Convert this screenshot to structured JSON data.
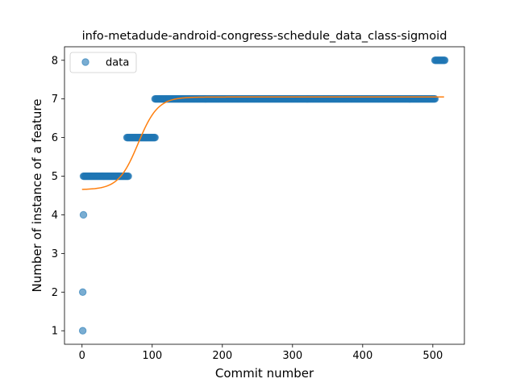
{
  "chart_data": {
    "type": "scatter",
    "title": "info-metadude-android-congress-schedule_data_class-sigmoid",
    "xlabel": "Commit number",
    "ylabel": "Number of instance of a feature",
    "xlim": [
      -25,
      545
    ],
    "ylim": [
      0.65,
      8.35
    ],
    "xticks": [
      0,
      100,
      200,
      300,
      400,
      500
    ],
    "yticks": [
      1,
      2,
      3,
      4,
      5,
      6,
      7,
      8
    ],
    "grid": false,
    "legend": {
      "placement": "top-left",
      "entries": [
        "data"
      ]
    },
    "colors": {
      "data": "#1f77b4",
      "fit": "#ff7f0e"
    },
    "series": [
      {
        "name": "data",
        "kind": "scatter",
        "segments": [
          {
            "x_start": 1,
            "x_end": 1,
            "y": 1
          },
          {
            "x_start": 1,
            "x_end": 1,
            "y": 2
          },
          {
            "x_start": 2,
            "x_end": 2,
            "y": 4
          },
          {
            "x_start": 2,
            "x_end": 66,
            "y": 5
          },
          {
            "x_start": 64,
            "x_end": 104,
            "y": 6
          },
          {
            "x_start": 104,
            "x_end": 503,
            "y": 7
          },
          {
            "x_start": 503,
            "x_end": 517,
            "y": 8
          }
        ]
      },
      {
        "kind": "line",
        "model": "sigmoid",
        "params": {
          "lower": 4.65,
          "upper": 7.05,
          "midpoint": 80,
          "scale": 14
        },
        "x_range": [
          0,
          517
        ]
      }
    ]
  }
}
